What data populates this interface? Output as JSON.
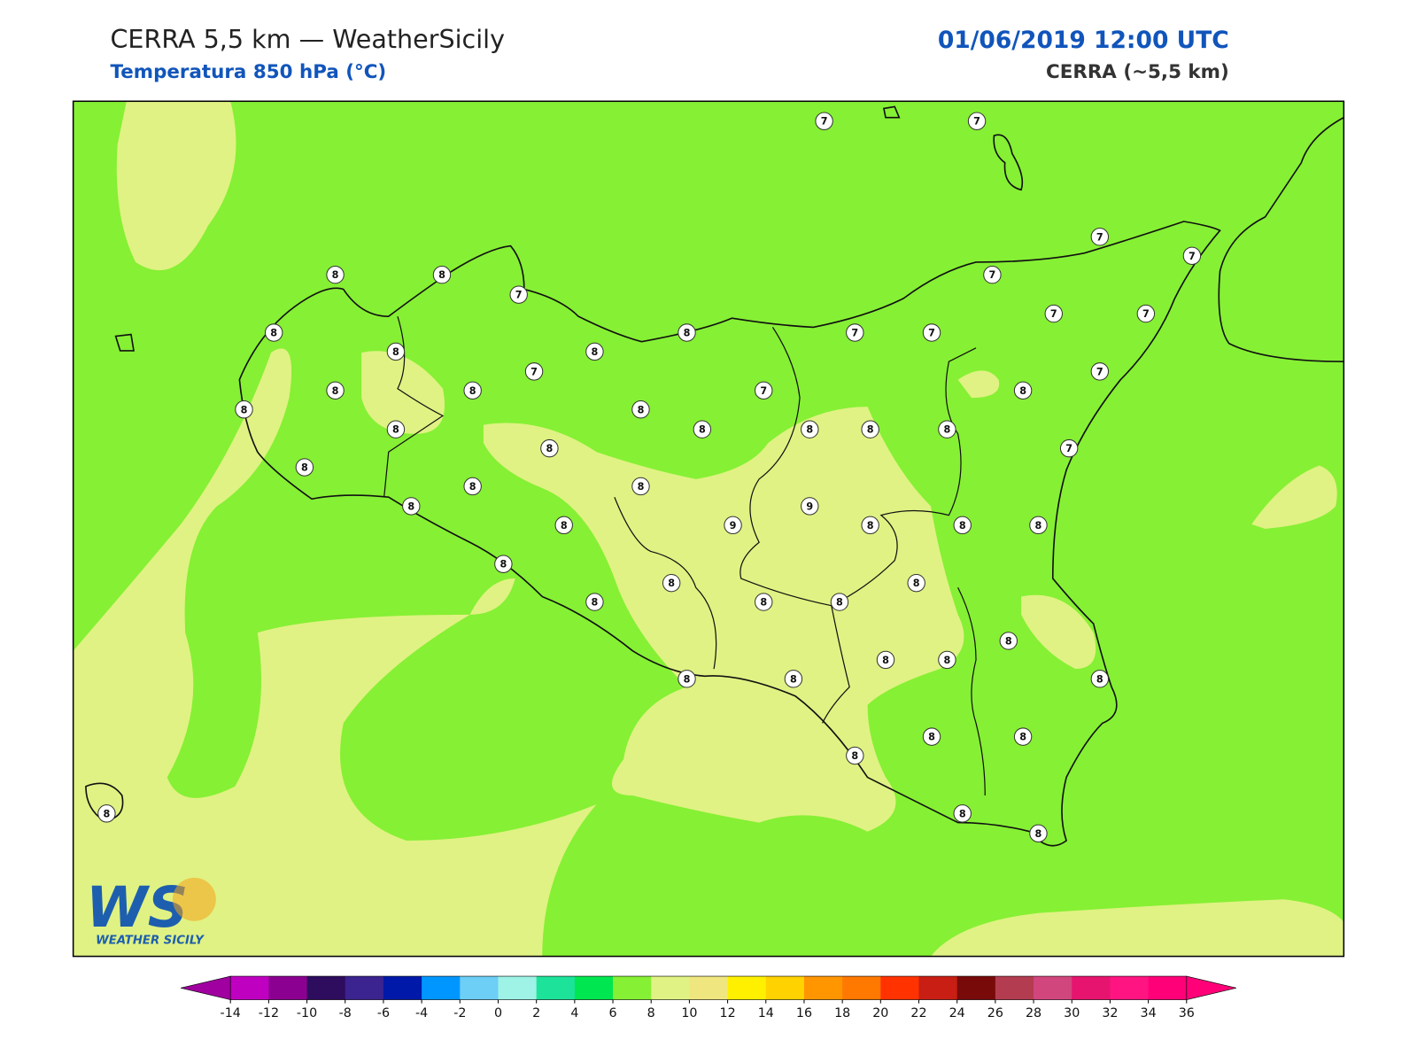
{
  "header": {
    "title": "CERRA 5,5 km — WeatherSicily",
    "subtitle": "Temperatura 850 hPa (°C)",
    "datetime": "01/06/2019 12:00 UTC",
    "model": "CERRA (~5,5 km)"
  },
  "stations": [
    7,
    7,
    7,
    7,
    8,
    8,
    7,
    7,
    8,
    8,
    7,
    7,
    7,
    7,
    8,
    8,
    7,
    7,
    8,
    8,
    7,
    8,
    8,
    8,
    8,
    8,
    8,
    8,
    8,
    8,
    7,
    8,
    8,
    8,
    8,
    9,
    9,
    8,
    8,
    8,
    8,
    8,
    8,
    8,
    8,
    8,
    8,
    8,
    8,
    8,
    8,
    8,
    8,
    8,
    8,
    8,
    8,
    8,
    8
  ],
  "logo": {
    "mark": "WS",
    "name": "WEATHER SICILY"
  },
  "colorbar": {
    "ticks": [
      -14,
      -12,
      -10,
      -8,
      -6,
      -4,
      -2,
      0,
      2,
      4,
      6,
      8,
      10,
      12,
      14,
      16,
      18,
      20,
      22,
      24,
      26,
      28,
      30,
      32,
      34,
      36
    ],
    "colors": [
      "#c000c0",
      "#8b0090",
      "#2e0c5e",
      "#3b2390",
      "#0019a8",
      "#0096ff",
      "#6dcff6",
      "#9ef2e6",
      "#1de39a",
      "#00e650",
      "#86f034",
      "#e0f283",
      "#f0e680",
      "#fff000",
      "#ffd200",
      "#ff9600",
      "#ff7800",
      "#ff3200",
      "#c81e14",
      "#780a0a",
      "#b43c50",
      "#d2467e",
      "#e6146e",
      "#ff1482",
      "#ff0078"
    ],
    "under_color": "#a000a0",
    "over_color": "#ff0078"
  }
}
